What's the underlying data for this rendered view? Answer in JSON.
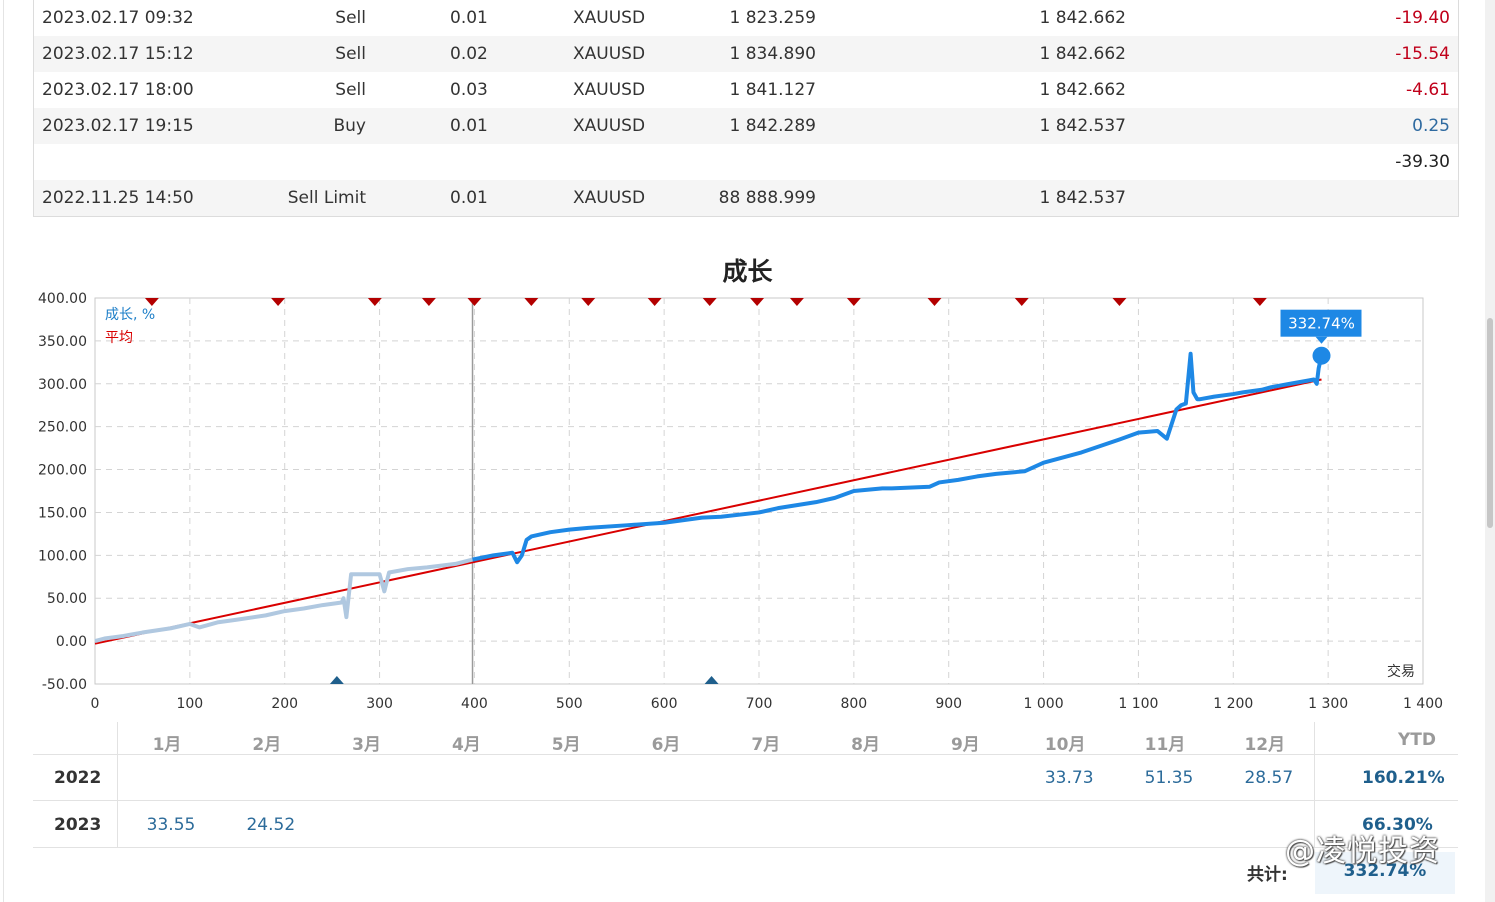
{
  "trades": [
    {
      "time": "2023.02.17 09:32",
      "type": "Sell",
      "volume": "0.01",
      "symbol": "XAUUSD",
      "open_price": "1 823.259",
      "current_price": "1 842.662",
      "profit": "-19.40",
      "sign": "neg"
    },
    {
      "time": "2023.02.17 15:12",
      "type": "Sell",
      "volume": "0.02",
      "symbol": "XAUUSD",
      "open_price": "1 834.890",
      "current_price": "1 842.662",
      "profit": "-15.54",
      "sign": "neg"
    },
    {
      "time": "2023.02.17 18:00",
      "type": "Sell",
      "volume": "0.03",
      "symbol": "XAUUSD",
      "open_price": "1 841.127",
      "current_price": "1 842.662",
      "profit": "-4.61",
      "sign": "neg"
    },
    {
      "time": "2023.02.17 19:15",
      "type": "Buy",
      "volume": "0.01",
      "symbol": "XAUUSD",
      "open_price": "1 842.289",
      "current_price": "1 842.537",
      "profit": "0.25",
      "sign": "pos"
    },
    {
      "time": "",
      "type": "",
      "volume": "",
      "symbol": "",
      "open_price": "",
      "current_price": "",
      "profit": "-39.30",
      "sign": "tot"
    },
    {
      "time": "2022.11.25 14:50",
      "type": "Sell Limit",
      "volume": "0.01",
      "symbol": "XAUUSD",
      "open_price": "88 888.999",
      "current_price": "1 842.537",
      "profit": "",
      "sign": "tot"
    }
  ],
  "chart_data": {
    "type": "line",
    "title": "成长",
    "xlabel": "交易",
    "ylabel": "",
    "xlim": [
      0,
      1400
    ],
    "ylim": [
      -50,
      400
    ],
    "x_ticks": [
      0,
      100,
      200,
      300,
      400,
      500,
      600,
      700,
      800,
      900,
      1000,
      1100,
      1200,
      1300,
      1400
    ],
    "x_tick_labels": [
      "0",
      "100",
      "200",
      "300",
      "400",
      "500",
      "600",
      "700",
      "800",
      "900",
      "1 000",
      "1 100",
      "1 200",
      "1 300",
      "1 400"
    ],
    "y_ticks": [
      -50,
      0,
      50,
      100,
      150,
      200,
      250,
      300,
      350,
      400
    ],
    "y_tick_labels": [
      "-50.00",
      "0.00",
      "50.00",
      "100.00",
      "150.00",
      "200.00",
      "250.00",
      "300.00",
      "350.00",
      "400.00"
    ],
    "grid": true,
    "legend_position": "top-left",
    "divider_x": 398,
    "end_label": "332.74%",
    "top_markers_x": [
      60,
      193,
      295,
      352,
      400,
      460,
      520,
      590,
      648,
      698,
      740,
      800,
      885,
      977,
      1080,
      1228
    ],
    "bottom_markers_x": [
      255,
      650
    ],
    "series": [
      {
        "name": "成长, %",
        "color": "#1e88e5",
        "history_color": "#b0c8e0",
        "split_x": 398,
        "x": [
          0,
          10,
          30,
          50,
          80,
          100,
          110,
          130,
          150,
          180,
          200,
          220,
          240,
          260,
          262,
          265,
          270,
          300,
          305,
          310,
          330,
          350,
          380,
          398,
          420,
          440,
          445,
          450,
          455,
          460,
          480,
          500,
          520,
          560,
          600,
          640,
          660,
          700,
          720,
          760,
          780,
          800,
          830,
          840,
          880,
          890,
          910,
          930,
          950,
          980,
          1000,
          1040,
          1080,
          1100,
          1120,
          1130,
          1140,
          1145,
          1150,
          1155,
          1158,
          1162,
          1165,
          1180,
          1200,
          1210,
          1230,
          1240,
          1260,
          1280,
          1285,
          1288,
          1290,
          1293
        ],
        "y": [
          0,
          3,
          6,
          10,
          15,
          20,
          16,
          22,
          25,
          30,
          35,
          38,
          42,
          45,
          50,
          28,
          78,
          78,
          58,
          80,
          84,
          86,
          90,
          95,
          100,
          103,
          92,
          100,
          118,
          122,
          127,
          130,
          132,
          135,
          138,
          144,
          145,
          150,
          155,
          162,
          167,
          175,
          178,
          178,
          180,
          185,
          188,
          192,
          195,
          198,
          208,
          220,
          235,
          243,
          245,
          236,
          270,
          275,
          277,
          335,
          290,
          282,
          282,
          285,
          288,
          290,
          293,
          296,
          300,
          304,
          305,
          300,
          318,
          332.74
        ]
      },
      {
        "name": "平均",
        "color": "#d90000",
        "x": [
          0,
          1293
        ],
        "y": [
          -3,
          305
        ]
      }
    ]
  },
  "monthly": {
    "months": [
      "1月",
      "2月",
      "3月",
      "4月",
      "5月",
      "6月",
      "7月",
      "8月",
      "9月",
      "10月",
      "11月",
      "12月"
    ],
    "ytd_label": "YTD",
    "rows": [
      {
        "year": "2022",
        "values": [
          "",
          "",
          "",
          "",
          "",
          "",
          "",
          "",
          "",
          "33.73",
          "51.35",
          "28.57"
        ],
        "ytd": "160.21%"
      },
      {
        "year": "2023",
        "values": [
          "33.55",
          "24.52",
          "",
          "",
          "",
          "",
          "",
          "",
          "",
          "",
          "",
          ""
        ],
        "ytd": "66.30%"
      }
    ],
    "total_label": "共计:",
    "total_value": "332.74%"
  },
  "watermark": "@凌悦投资"
}
